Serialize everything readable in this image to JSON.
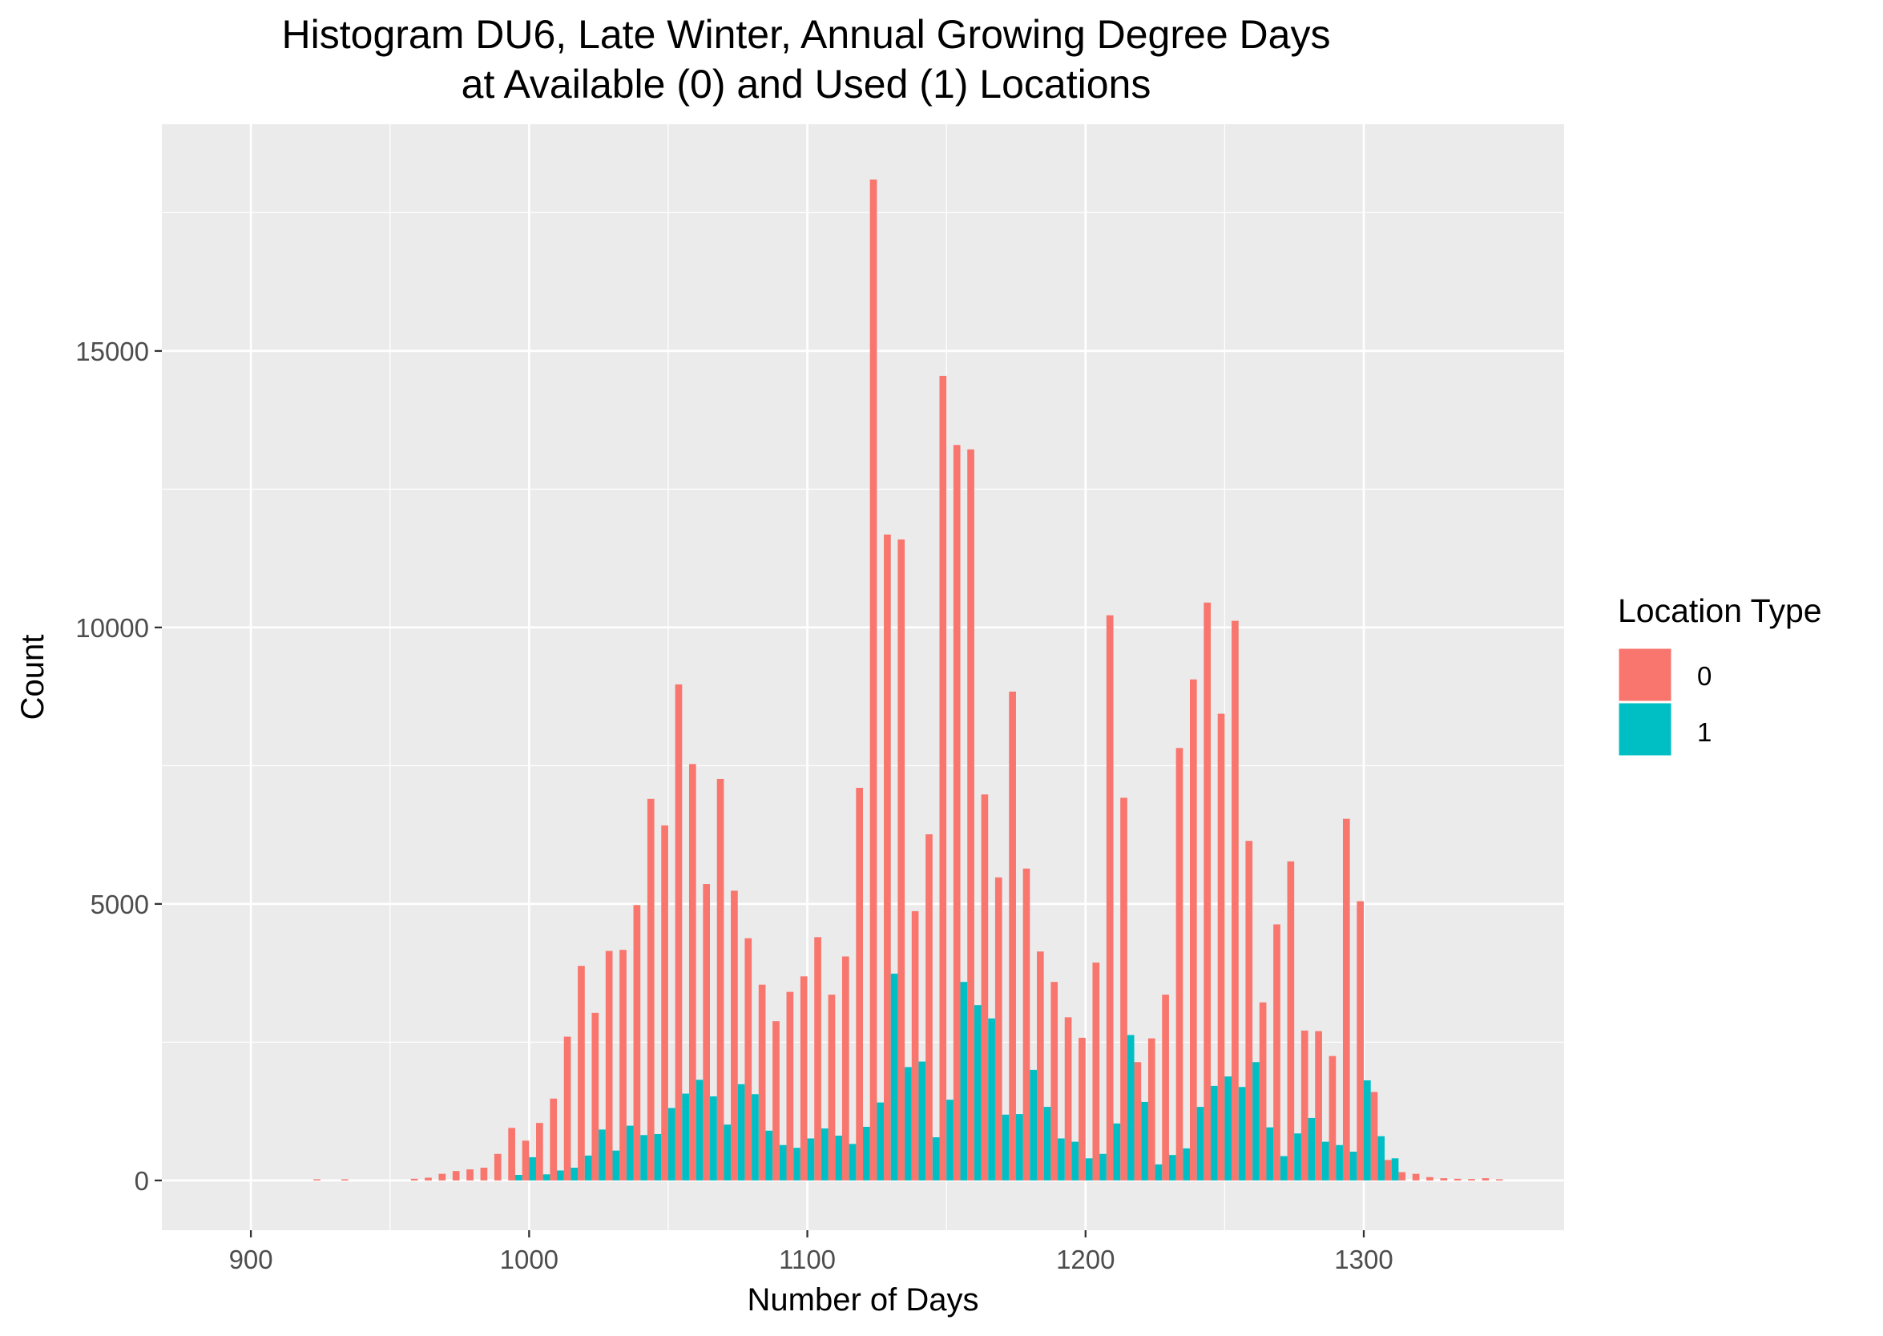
{
  "chart_data": {
    "type": "bar",
    "title_line1": "Histogram DU6, Late Winter, Annual Growing Degree Days",
    "title_line2": "at Available (0) and Used (1) Locations",
    "xlabel": "Number of Days",
    "ylabel": "Count",
    "xlim": [
      868,
      1372
    ],
    "ylim": [
      -900,
      19100
    ],
    "xticks": [
      900,
      1000,
      1100,
      1200,
      1300
    ],
    "yticks": [
      0,
      5000,
      10000,
      15000
    ],
    "grid": true,
    "legend_position": "right",
    "legend_title": "Location Type",
    "bin_width": 5,
    "series": [
      {
        "name": "0",
        "color": "#F8766D",
        "points": [
          [
            925,
            20
          ],
          [
            935,
            20
          ],
          [
            960,
            30
          ],
          [
            965,
            50
          ],
          [
            970,
            120
          ],
          [
            975,
            170
          ],
          [
            980,
            200
          ],
          [
            985,
            230
          ],
          [
            990,
            480
          ],
          [
            995,
            950
          ],
          [
            1000,
            720
          ],
          [
            1005,
            1040
          ],
          [
            1010,
            1480
          ],
          [
            1015,
            2600
          ],
          [
            1020,
            3880
          ],
          [
            1025,
            3030
          ],
          [
            1030,
            4150
          ],
          [
            1035,
            4170
          ],
          [
            1040,
            4980
          ],
          [
            1045,
            6900
          ],
          [
            1050,
            6420
          ],
          [
            1055,
            8970
          ],
          [
            1060,
            7530
          ],
          [
            1065,
            5360
          ],
          [
            1070,
            7260
          ],
          [
            1075,
            5240
          ],
          [
            1080,
            4380
          ],
          [
            1085,
            3540
          ],
          [
            1090,
            2880
          ],
          [
            1095,
            3410
          ],
          [
            1100,
            3690
          ],
          [
            1105,
            4400
          ],
          [
            1110,
            3360
          ],
          [
            1115,
            4050
          ],
          [
            1120,
            7100
          ],
          [
            1125,
            18100
          ],
          [
            1130,
            11680
          ],
          [
            1135,
            11590
          ],
          [
            1140,
            4870
          ],
          [
            1145,
            6260
          ],
          [
            1150,
            14550
          ],
          [
            1155,
            13300
          ],
          [
            1160,
            13220
          ],
          [
            1165,
            6980
          ],
          [
            1170,
            5480
          ],
          [
            1175,
            8840
          ],
          [
            1180,
            5640
          ],
          [
            1185,
            4140
          ],
          [
            1190,
            3590
          ],
          [
            1195,
            2950
          ],
          [
            1200,
            2580
          ],
          [
            1205,
            3940
          ],
          [
            1210,
            10220
          ],
          [
            1215,
            6920
          ],
          [
            1220,
            2140
          ],
          [
            1225,
            2570
          ],
          [
            1230,
            3360
          ],
          [
            1235,
            7820
          ],
          [
            1240,
            9060
          ],
          [
            1245,
            10450
          ],
          [
            1250,
            8440
          ],
          [
            1255,
            10120
          ],
          [
            1260,
            6140
          ],
          [
            1265,
            3220
          ],
          [
            1270,
            4630
          ],
          [
            1275,
            5770
          ],
          [
            1280,
            2710
          ],
          [
            1285,
            2700
          ],
          [
            1290,
            2250
          ],
          [
            1295,
            6540
          ],
          [
            1300,
            5050
          ],
          [
            1305,
            1600
          ],
          [
            1310,
            370
          ],
          [
            1315,
            150
          ],
          [
            1320,
            120
          ],
          [
            1325,
            60
          ],
          [
            1330,
            40
          ],
          [
            1335,
            30
          ],
          [
            1340,
            25
          ],
          [
            1345,
            40
          ],
          [
            1350,
            20
          ]
        ]
      },
      {
        "name": "1",
        "color": "#00BFC4",
        "points": [
          [
            995,
            100
          ],
          [
            1000,
            420
          ],
          [
            1005,
            110
          ],
          [
            1010,
            180
          ],
          [
            1015,
            230
          ],
          [
            1020,
            450
          ],
          [
            1025,
            920
          ],
          [
            1030,
            540
          ],
          [
            1035,
            990
          ],
          [
            1040,
            820
          ],
          [
            1045,
            840
          ],
          [
            1050,
            1310
          ],
          [
            1055,
            1570
          ],
          [
            1060,
            1820
          ],
          [
            1065,
            1520
          ],
          [
            1070,
            1010
          ],
          [
            1075,
            1740
          ],
          [
            1080,
            1560
          ],
          [
            1085,
            900
          ],
          [
            1090,
            640
          ],
          [
            1095,
            590
          ],
          [
            1100,
            760
          ],
          [
            1105,
            940
          ],
          [
            1110,
            810
          ],
          [
            1115,
            660
          ],
          [
            1120,
            970
          ],
          [
            1125,
            1410
          ],
          [
            1130,
            3740
          ],
          [
            1135,
            2050
          ],
          [
            1140,
            2150
          ],
          [
            1145,
            780
          ],
          [
            1150,
            1460
          ],
          [
            1155,
            3590
          ],
          [
            1160,
            3170
          ],
          [
            1165,
            2930
          ],
          [
            1170,
            1190
          ],
          [
            1175,
            1200
          ],
          [
            1180,
            2000
          ],
          [
            1185,
            1330
          ],
          [
            1190,
            760
          ],
          [
            1195,
            700
          ],
          [
            1200,
            400
          ],
          [
            1205,
            480
          ],
          [
            1210,
            1030
          ],
          [
            1215,
            2630
          ],
          [
            1220,
            1420
          ],
          [
            1225,
            290
          ],
          [
            1230,
            460
          ],
          [
            1235,
            580
          ],
          [
            1240,
            1330
          ],
          [
            1245,
            1710
          ],
          [
            1250,
            1880
          ],
          [
            1255,
            1690
          ],
          [
            1260,
            2140
          ],
          [
            1265,
            960
          ],
          [
            1270,
            440
          ],
          [
            1275,
            850
          ],
          [
            1280,
            1130
          ],
          [
            1285,
            700
          ],
          [
            1290,
            640
          ],
          [
            1295,
            520
          ],
          [
            1300,
            1810
          ],
          [
            1305,
            800
          ],
          [
            1310,
            400
          ]
        ]
      }
    ]
  }
}
